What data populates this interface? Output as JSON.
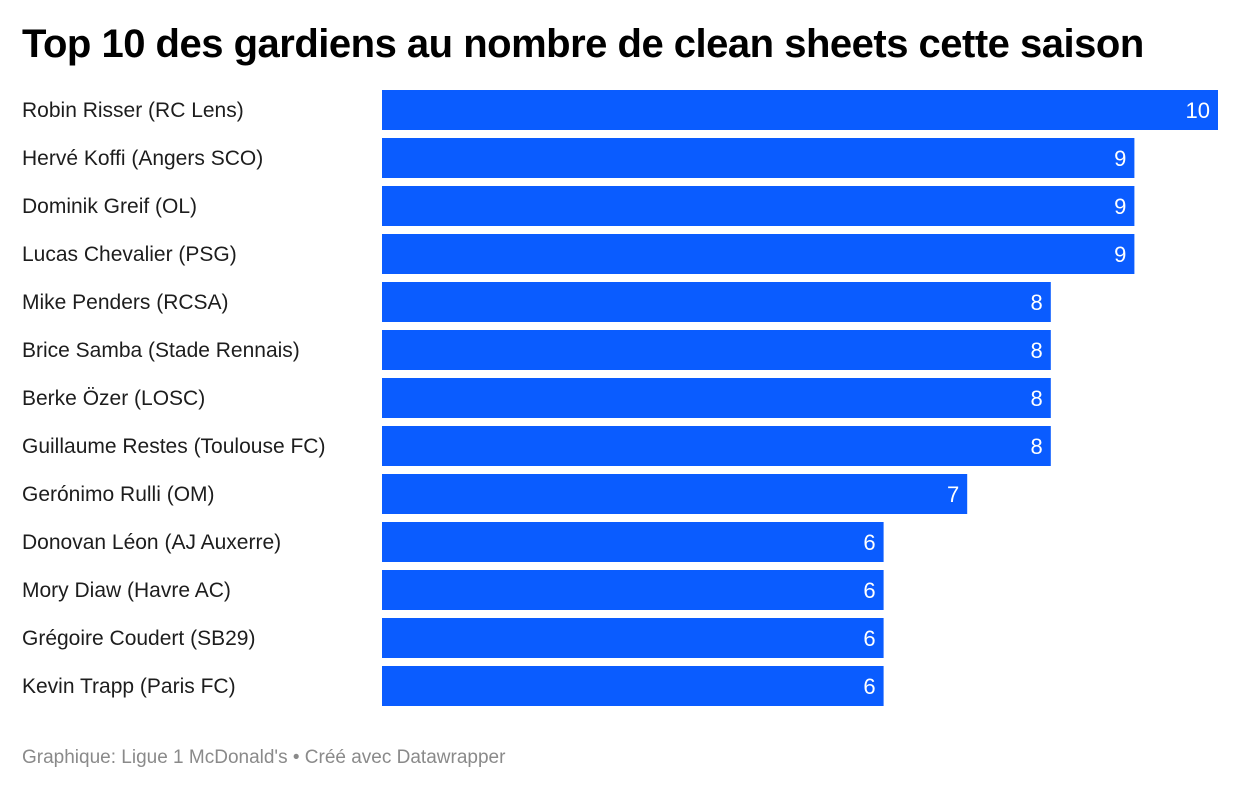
{
  "chart_data": {
    "type": "bar",
    "orientation": "horizontal",
    "title": "Top 10 des gardiens au nombre de clean sheets cette saison",
    "categories": [
      "Robin Risser (RC Lens)",
      "Hervé Koffi (Angers SCO)",
      "Dominik Greif (OL)",
      "Lucas Chevalier (PSG)",
      "Mike Penders (RCSA)",
      "Brice Samba (Stade Rennais)",
      "Berke Özer (LOSC)",
      "Guillaume Restes (Toulouse FC)",
      "Gerónimo Rulli (OM)",
      "Donovan Léon (AJ Auxerre)",
      "Mory Diaw (Havre AC)",
      "Grégoire Coudert (SB29)",
      "Kevin Trapp (Paris FC)"
    ],
    "values": [
      10,
      9,
      9,
      9,
      8,
      8,
      8,
      8,
      7,
      6,
      6,
      6,
      6
    ],
    "xlim": [
      0,
      10
    ],
    "grid": false,
    "data_labels": true,
    "bar_color": "#0a5cff",
    "label_color": "#ffffff"
  },
  "footer": "Graphique: Ligue 1 McDonald's • Créé avec Datawrapper"
}
